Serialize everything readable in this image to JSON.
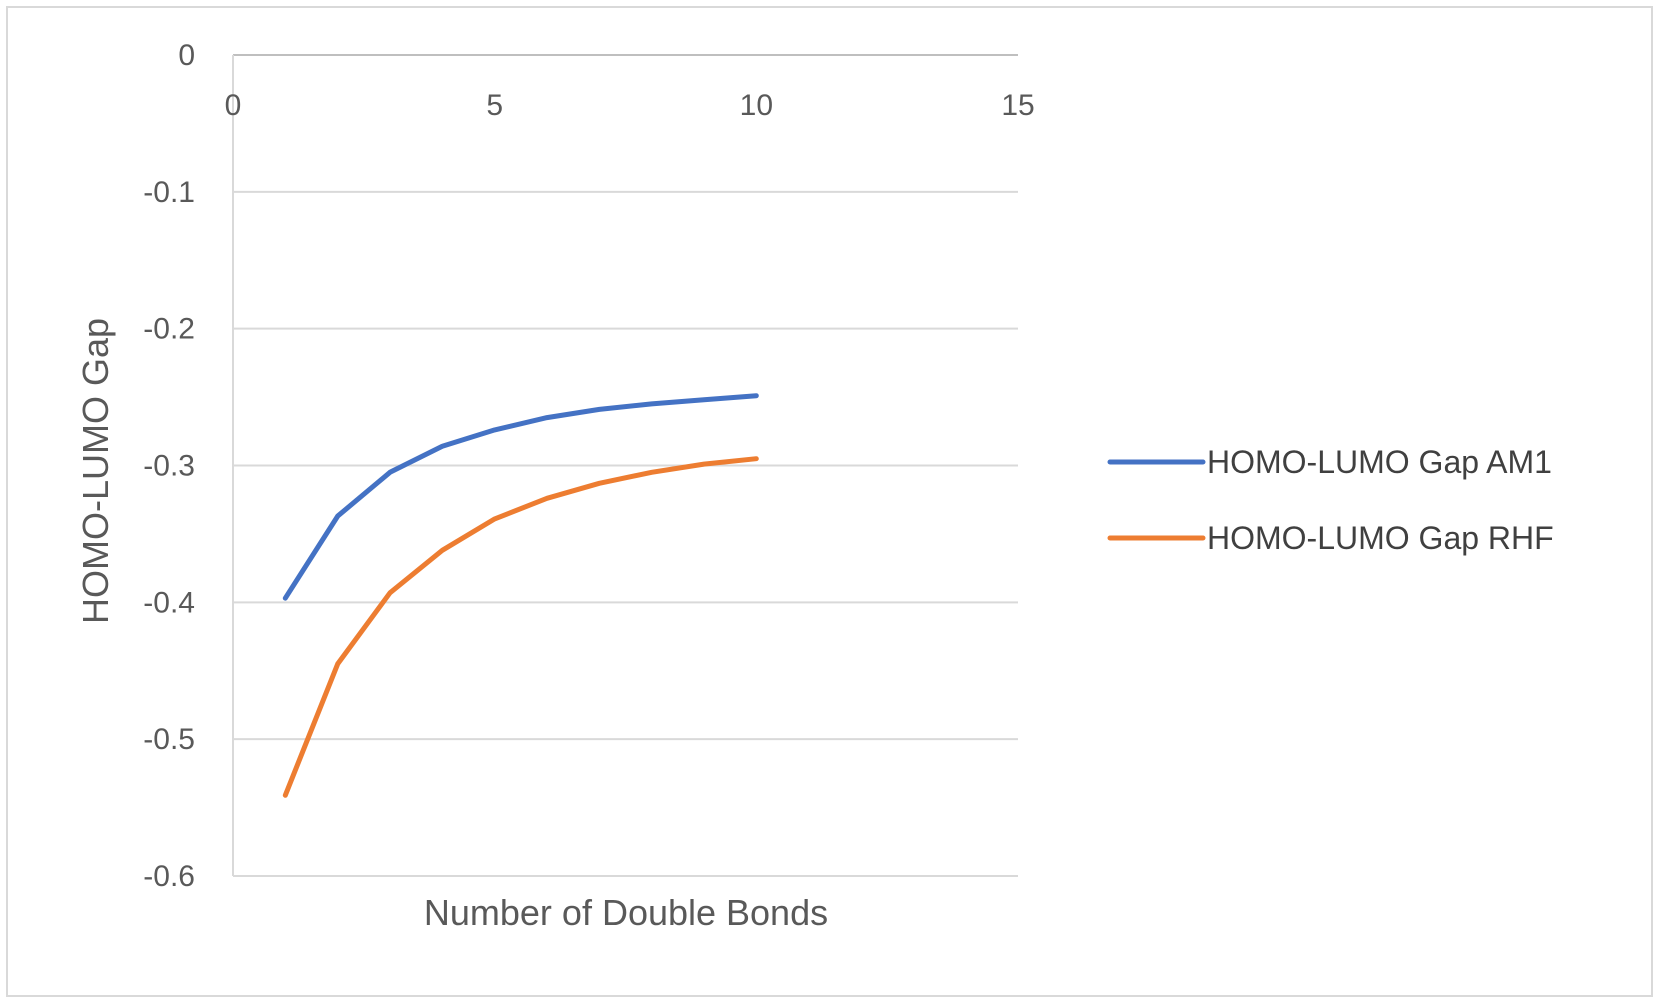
{
  "chart_data": {
    "type": "line",
    "title": "",
    "xlabel": "Number of Double Bonds",
    "ylabel": "HOMO-LUMO Gap",
    "xlim": [
      0,
      15
    ],
    "ylim": [
      -0.6,
      0
    ],
    "x_ticks": [
      "0",
      "5",
      "10",
      "15"
    ],
    "y_ticks": [
      "0",
      "-0.1",
      "-0.2",
      "-0.3",
      "-0.4",
      "-0.5",
      "-0.6"
    ],
    "grid": true,
    "legend_position": "right",
    "x": [
      1,
      2,
      3,
      4,
      5,
      6,
      7,
      8,
      9,
      10
    ],
    "series": [
      {
        "name": "HOMO-LUMO Gap AM1",
        "color": "#4472c4",
        "values": [
          -0.397,
          -0.337,
          -0.305,
          -0.286,
          -0.274,
          -0.265,
          -0.259,
          -0.255,
          -0.252,
          -0.249
        ]
      },
      {
        "name": "HOMO-LUMO Gap RHF",
        "color": "#ed7d31",
        "values": [
          -0.541,
          -0.445,
          -0.393,
          -0.362,
          -0.339,
          -0.324,
          -0.313,
          -0.305,
          -0.299,
          -0.295
        ]
      }
    ]
  }
}
